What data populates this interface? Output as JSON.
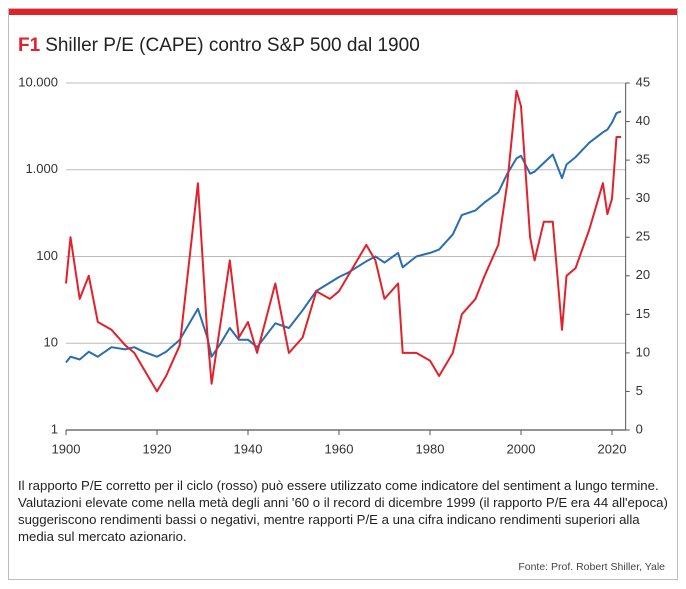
{
  "chart_data": {
    "type": "line",
    "title_tag": "F1",
    "title": "Shiller P/E (CAPE) contro S&P 500 dal 1900",
    "note": "Il rapporto P/E corretto per il ciclo (rosso) può essere utilizzato come indicatore del sentiment a lungo termine. Valutazioni elevate come nella metà degli anni '60 o il record di dicembre 1999 (il rapporto P/E era 44 all'epoca) suggeriscono rendimenti bassi o negativi, mentre rapporti P/E a una cifra indicano rendimenti superiori alla media sul mercato azionario.",
    "source": "Fonte: Prof. Robert Shiller, Yale",
    "x": [
      1900,
      1901,
      1903,
      1905,
      1907,
      1910,
      1913,
      1915,
      1917,
      1920,
      1922,
      1925,
      1929,
      1931,
      1932,
      1934,
      1936,
      1938,
      1940,
      1942,
      1946,
      1949,
      1952,
      1955,
      1958,
      1960,
      1962,
      1966,
      1968,
      1970,
      1973,
      1974,
      1977,
      1980,
      1982,
      1985,
      1987,
      1990,
      1992,
      1995,
      1997,
      1999,
      2000,
      2002,
      2003,
      2005,
      2007,
      2009,
      2010,
      2012,
      2015,
      2018,
      2019,
      2020,
      2021,
      2022
    ],
    "series": [
      {
        "name": "S&P 500",
        "color": "#2a6db0",
        "axis": "y",
        "values": [
          6,
          7,
          6.5,
          8,
          7,
          9,
          8.5,
          9,
          8,
          7,
          8,
          11,
          25,
          12,
          7,
          10,
          15,
          11,
          11,
          9,
          17,
          15,
          24,
          40,
          50,
          58,
          65,
          88,
          100,
          85,
          110,
          75,
          100,
          110,
          120,
          180,
          300,
          340,
          420,
          550,
          900,
          1350,
          1450,
          900,
          950,
          1200,
          1500,
          800,
          1150,
          1400,
          2050,
          2700,
          2900,
          3500,
          4500,
          4700
        ]
      },
      {
        "name": "Shiller P/E (CAPE)",
        "color": "#e3212b",
        "axis": "y2",
        "values": [
          19,
          25,
          17,
          20,
          14,
          13,
          11,
          10,
          8,
          5,
          7,
          11,
          32,
          13,
          6,
          14,
          22,
          12,
          14,
          10,
          19,
          10,
          12,
          18,
          17,
          18,
          20,
          24,
          22,
          17,
          19,
          10,
          10,
          9,
          7,
          10,
          15,
          17,
          20,
          24,
          32,
          44,
          42,
          25,
          22,
          27,
          27,
          13,
          20,
          21,
          26,
          32,
          28,
          30,
          38,
          38
        ]
      }
    ],
    "xlim": [
      1900,
      2023
    ],
    "xticks": [
      1900,
      1920,
      1940,
      1960,
      1980,
      2000,
      2020
    ],
    "ylim": [
      1,
      10000
    ],
    "ylog": true,
    "yticks": [
      1,
      10,
      100,
      {
        "value": 1000,
        "label": "1.000"
      },
      {
        "value": 10000,
        "label": "10.000"
      }
    ],
    "y2lim": [
      0,
      45
    ],
    "y2ticks": [
      0,
      5,
      10,
      15,
      20,
      25,
      30,
      35,
      40,
      45
    ],
    "grid": true
  }
}
